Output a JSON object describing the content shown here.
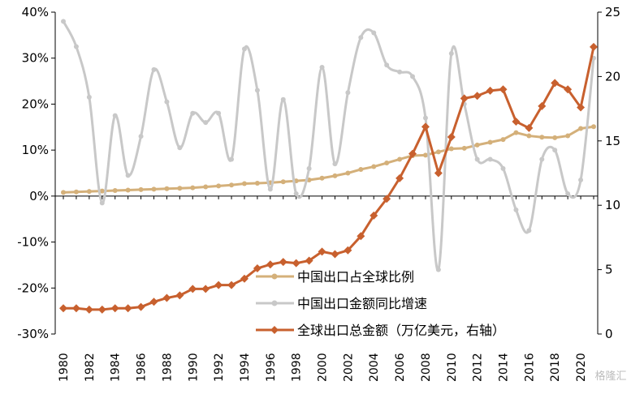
{
  "chart_data": {
    "type": "line",
    "x": [
      1980,
      1981,
      1982,
      1983,
      1984,
      1985,
      1986,
      1987,
      1988,
      1989,
      1990,
      1991,
      1992,
      1993,
      1994,
      1995,
      1996,
      1997,
      1998,
      1999,
      2000,
      2001,
      2002,
      2003,
      2004,
      2005,
      2006,
      2007,
      2008,
      2009,
      2010,
      2011,
      2012,
      2013,
      2014,
      2015,
      2016,
      2017,
      2018,
      2019,
      2020,
      2021
    ],
    "x_tick_labels": [
      "1980",
      "1982",
      "1984",
      "1986",
      "1988",
      "1990",
      "1992",
      "1994",
      "1996",
      "1998",
      "2000",
      "2002",
      "2004",
      "2006",
      "2008",
      "2010",
      "2012",
      "2014",
      "2016",
      "2018",
      "2020"
    ],
    "y_left_ticks": [
      "-30%",
      "-20%",
      "-10%",
      "0%",
      "10%",
      "20%",
      "30%",
      "40%"
    ],
    "y_left_range": [
      -30,
      40
    ],
    "y_right_ticks": [
      "0",
      "5",
      "10",
      "15",
      "20",
      "25"
    ],
    "y_right_range": [
      0,
      25
    ],
    "series": [
      {
        "name": "中国出口占全球比例",
        "axis": "left",
        "color": "#d4b07a",
        "marker": "circle",
        "values": [
          0.8,
          0.9,
          1.0,
          1.1,
          1.2,
          1.3,
          1.4,
          1.5,
          1.6,
          1.7,
          1.8,
          2.0,
          2.2,
          2.4,
          2.7,
          2.8,
          2.9,
          3.1,
          3.3,
          3.5,
          3.9,
          4.4,
          5.0,
          5.8,
          6.4,
          7.2,
          8.0,
          8.8,
          8.9,
          9.6,
          10.3,
          10.4,
          11.1,
          11.7,
          12.3,
          13.8,
          13.1,
          12.8,
          12.7,
          13.1,
          14.7,
          15.1
        ]
      },
      {
        "name": "中国出口金额同比增速",
        "axis": "left",
        "color": "#c8c8c8",
        "marker": "circle",
        "values": [
          38.0,
          32.5,
          21.5,
          -1.5,
          17.5,
          4.5,
          13.0,
          27.5,
          20.5,
          10.5,
          18.0,
          16.0,
          18.0,
          8.0,
          32.0,
          23.0,
          1.5,
          21.0,
          0.5,
          6.0,
          28.0,
          7.0,
          22.5,
          34.5,
          35.5,
          28.5,
          27.0,
          26.0,
          17.0,
          -16.0,
          31.0,
          20.0,
          8.0,
          8.0,
          6.0,
          -3.0,
          -7.5,
          8.0,
          10.0,
          0.5,
          3.5,
          30.0
        ]
      },
      {
        "name": "全球出口总金额（万亿美元，右轴）",
        "axis": "right",
        "color": "#c8602e",
        "marker": "diamond",
        "values": [
          2.0,
          2.0,
          1.9,
          1.9,
          2.0,
          2.0,
          2.1,
          2.5,
          2.8,
          3.0,
          3.5,
          3.5,
          3.8,
          3.8,
          4.3,
          5.1,
          5.4,
          5.6,
          5.5,
          5.7,
          6.4,
          6.2,
          6.5,
          7.6,
          9.2,
          10.5,
          12.1,
          14.0,
          16.1,
          12.5,
          15.3,
          18.3,
          18.5,
          18.9,
          19.0,
          16.5,
          16.0,
          17.7,
          19.5,
          19.0,
          17.6,
          22.3
        ]
      }
    ]
  },
  "watermark": "格隆汇"
}
